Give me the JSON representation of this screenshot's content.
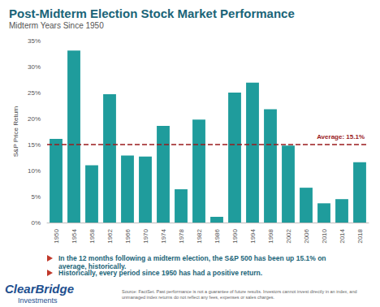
{
  "chart_data": {
    "type": "bar",
    "title": "Post-Midterm Election Stock Market Performance",
    "subtitle": "Midterm Years Since 1950",
    "y_label": "S&P Price Return",
    "categories": [
      "1950",
      "1954",
      "1958",
      "1962",
      "1966",
      "1970",
      "1974",
      "1978",
      "1982",
      "1986",
      "1990",
      "1994",
      "1998",
      "2002",
      "2006",
      "2010",
      "2014",
      "2018"
    ],
    "values": [
      16.1,
      33.1,
      11.0,
      24.7,
      12.9,
      12.7,
      18.6,
      6.4,
      19.8,
      1.1,
      25.0,
      26.9,
      21.8,
      14.8,
      6.7,
      3.7,
      4.5,
      11.6
    ],
    "color": "#1f9c9c",
    "ylim": [
      0,
      35
    ],
    "yticks": [
      {
        "value": 0,
        "label": "0%"
      },
      {
        "value": 5,
        "label": "5%"
      },
      {
        "value": 10,
        "label": "10%"
      },
      {
        "value": 15,
        "label": "15%"
      },
      {
        "value": 20,
        "label": "20%"
      },
      {
        "value": 25,
        "label": "25%"
      },
      {
        "value": 30,
        "label": "30%"
      },
      {
        "value": 35,
        "label": "35%"
      }
    ],
    "grid": false,
    "annotations": [
      {
        "label": "Average: 15.1%",
        "value": 15.1,
        "color": "#9b1b1e",
        "line_style": "dashed"
      }
    ],
    "notes": [
      "In the 12 months following a midterm election, the S&P 500 has been up 15.1% on average, historically.",
      "Historically, every period since 1950 has had a positive return."
    ],
    "logo": [
      "ClearBridge",
      "Investments"
    ],
    "source": "Source: FactSet. Past performance is not a guarantee of future results. Investors cannot invest directly in an index, and unmanaged index returns do not reflect any fees, expenses or sales charges."
  }
}
